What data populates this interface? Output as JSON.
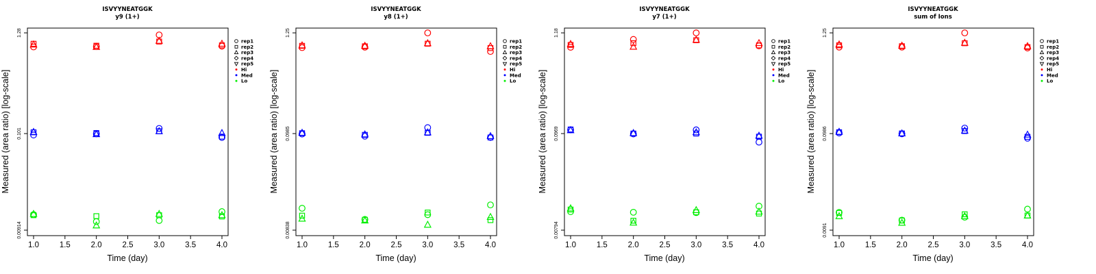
{
  "chart_data": [
    {
      "type": "scatter",
      "title": "ISVYYNEATGGK",
      "subtitle": "y9 (1+)",
      "xlabel": "Time (day)",
      "ylabel": "Measured (area ratio) [log-scale]",
      "xlim": [
        1,
        4
      ],
      "x_ticks": [
        "1.0",
        "1.5",
        "2.0",
        "2.5",
        "3.0",
        "3.5",
        "4.0"
      ],
      "y_tick_labels": [
        "1.28",
        "0.101",
        "0.00914"
      ],
      "ylim_log10": [
        -2.07,
        0.13
      ],
      "legend_entries": [
        "rep1",
        "rep2",
        "rep3",
        "rep4",
        "rep5",
        "Hi",
        "Med",
        "Lo"
      ],
      "legend_position": "right",
      "series": [
        {
          "name": "Hi",
          "color": "#ff0000",
          "points": [
            {
              "x": 1,
              "rep": "rep1",
              "y": 0.94
            },
            {
              "x": 1,
              "rep": "rep2",
              "y": 1.02
            },
            {
              "x": 1,
              "rep": "rep3",
              "y": 1.0
            },
            {
              "x": 2,
              "rep": "rep1",
              "y": 0.95
            },
            {
              "x": 2,
              "rep": "rep2",
              "y": 0.97
            },
            {
              "x": 2,
              "rep": "rep3",
              "y": 0.94
            },
            {
              "x": 3,
              "rep": "rep1",
              "y": 1.28
            },
            {
              "x": 3,
              "rep": "rep2",
              "y": 1.08
            },
            {
              "x": 3,
              "rep": "rep3",
              "y": 1.1
            },
            {
              "x": 4,
              "rep": "rep1",
              "y": 0.96
            },
            {
              "x": 4,
              "rep": "rep2",
              "y": 0.98
            },
            {
              "x": 4,
              "rep": "rep3",
              "y": 1.02
            }
          ]
        },
        {
          "name": "Med",
          "color": "#0000ff",
          "points": [
            {
              "x": 1,
              "rep": "rep1",
              "y": 0.098
            },
            {
              "x": 1,
              "rep": "rep2",
              "y": 0.105
            },
            {
              "x": 1,
              "rep": "rep3",
              "y": 0.106
            },
            {
              "x": 2,
              "rep": "rep1",
              "y": 0.101
            },
            {
              "x": 2,
              "rep": "rep2",
              "y": 0.103
            },
            {
              "x": 2,
              "rep": "rep3",
              "y": 0.1
            },
            {
              "x": 3,
              "rep": "rep1",
              "y": 0.116
            },
            {
              "x": 3,
              "rep": "rep2",
              "y": 0.108
            },
            {
              "x": 3,
              "rep": "rep3",
              "y": 0.108
            },
            {
              "x": 4,
              "rep": "rep1",
              "y": 0.092
            },
            {
              "x": 4,
              "rep": "rep2",
              "y": 0.094
            },
            {
              "x": 4,
              "rep": "rep3",
              "y": 0.103
            }
          ]
        },
        {
          "name": "Lo",
          "color": "#00ee00",
          "points": [
            {
              "x": 1,
              "rep": "rep1",
              "y": 0.0127
            },
            {
              "x": 1,
              "rep": "rep2",
              "y": 0.0125
            },
            {
              "x": 1,
              "rep": "rep3",
              "y": 0.0129
            },
            {
              "x": 2,
              "rep": "rep1",
              "y": 0.0106
            },
            {
              "x": 2,
              "rep": "rep2",
              "y": 0.0122
            },
            {
              "x": 2,
              "rep": "rep3",
              "y": 0.0096
            },
            {
              "x": 3,
              "rep": "rep1",
              "y": 0.0109
            },
            {
              "x": 3,
              "rep": "rep2",
              "y": 0.0125
            },
            {
              "x": 3,
              "rep": "rep3",
              "y": 0.0129
            },
            {
              "x": 4,
              "rep": "rep1",
              "y": 0.0137
            },
            {
              "x": 4,
              "rep": "rep2",
              "y": 0.0121
            },
            {
              "x": 4,
              "rep": "rep3",
              "y": 0.0125
            }
          ]
        }
      ]
    },
    {
      "type": "scatter",
      "title": "ISVYYNEATGGK",
      "subtitle": "y8 (1+)",
      "xlabel": "Time (day)",
      "ylabel": "Measured (area ratio) [log-scale]",
      "xlim": [
        1,
        4
      ],
      "x_ticks": [
        "1.0",
        "1.5",
        "2.0",
        "2.5",
        "3.0",
        "3.5",
        "4.0"
      ],
      "y_tick_labels": [
        "1.25",
        "0.0985",
        "0.00838"
      ],
      "ylim_log10": [
        -2.077,
        0.097
      ],
      "legend_entries": [
        "rep1",
        "rep2",
        "rep3",
        "rep4",
        "rep5",
        "Hi",
        "Med",
        "Lo"
      ],
      "legend_position": "right",
      "series": [
        {
          "name": "Hi",
          "color": "#ff0000",
          "points": [
            {
              "x": 1,
              "rep": "rep1",
              "y": 0.86
            },
            {
              "x": 1,
              "rep": "rep2",
              "y": 0.9
            },
            {
              "x": 1,
              "rep": "rep3",
              "y": 0.91
            },
            {
              "x": 2,
              "rep": "rep1",
              "y": 0.87
            },
            {
              "x": 2,
              "rep": "rep2",
              "y": 0.89
            },
            {
              "x": 2,
              "rep": "rep3",
              "y": 0.9
            },
            {
              "x": 3,
              "rep": "rep1",
              "y": 1.25
            },
            {
              "x": 3,
              "rep": "rep2",
              "y": 0.95
            },
            {
              "x": 3,
              "rep": "rep3",
              "y": 0.96
            },
            {
              "x": 4,
              "rep": "rep1",
              "y": 0.78
            },
            {
              "x": 4,
              "rep": "rep2",
              "y": 0.85
            },
            {
              "x": 4,
              "rep": "rep3",
              "y": 0.89
            }
          ]
        },
        {
          "name": "Med",
          "color": "#0000ff",
          "points": [
            {
              "x": 1,
              "rep": "rep1",
              "y": 0.096
            },
            {
              "x": 1,
              "rep": "rep2",
              "y": 0.098
            },
            {
              "x": 1,
              "rep": "rep3",
              "y": 0.099
            },
            {
              "x": 2,
              "rep": "rep1",
              "y": 0.091
            },
            {
              "x": 2,
              "rep": "rep2",
              "y": 0.094
            },
            {
              "x": 2,
              "rep": "rep3",
              "y": 0.095
            },
            {
              "x": 3,
              "rep": "rep1",
              "y": 0.113
            },
            {
              "x": 3,
              "rep": "rep2",
              "y": 0.099
            },
            {
              "x": 3,
              "rep": "rep3",
              "y": 0.1
            },
            {
              "x": 4,
              "rep": "rep1",
              "y": 0.088
            },
            {
              "x": 4,
              "rep": "rep2",
              "y": 0.088
            },
            {
              "x": 4,
              "rep": "rep3",
              "y": 0.091
            }
          ]
        },
        {
          "name": "Lo",
          "color": "#00ee00",
          "points": [
            {
              "x": 1,
              "rep": "rep1",
              "y": 0.0146
            },
            {
              "x": 1,
              "rep": "rep2",
              "y": 0.0121
            },
            {
              "x": 1,
              "rep": "rep3",
              "y": 0.0112
            },
            {
              "x": 2,
              "rep": "rep1",
              "y": 0.011
            },
            {
              "x": 2,
              "rep": "rep2",
              "y": 0.0109
            },
            {
              "x": 2,
              "rep": "rep3",
              "y": 0.0107
            },
            {
              "x": 3,
              "rep": "rep1",
              "y": 0.0124
            },
            {
              "x": 3,
              "rep": "rep2",
              "y": 0.0131
            },
            {
              "x": 3,
              "rep": "rep3",
              "y": 0.0096
            },
            {
              "x": 4,
              "rep": "rep1",
              "y": 0.0159
            },
            {
              "x": 4,
              "rep": "rep2",
              "y": 0.0108
            },
            {
              "x": 4,
              "rep": "rep3",
              "y": 0.0117
            }
          ]
        }
      ]
    },
    {
      "type": "scatter",
      "title": "ISVYYNEATGGK",
      "subtitle": "y7 (1+)",
      "xlabel": "Time (day)",
      "ylabel": "Measured (area ratio) [log-scale]",
      "xlim": [
        1,
        4
      ],
      "x_ticks": [
        "1.0",
        "1.5",
        "2.0",
        "2.5",
        "3.0",
        "3.5",
        "4.0"
      ],
      "y_tick_labels": [
        "1.18",
        "0.0969",
        "0.00794"
      ],
      "ylim_log10": [
        -2.1,
        0.072
      ],
      "legend_entries": [
        "rep1",
        "rep2",
        "rep3",
        "rep4",
        "rep5",
        "Hi",
        "Med",
        "Lo"
      ],
      "legend_position": "right",
      "series": [
        {
          "name": "Hi",
          "color": "#ff0000",
          "points": [
            {
              "x": 1,
              "rep": "rep1",
              "y": 0.82
            },
            {
              "x": 1,
              "rep": "rep2",
              "y": 0.87
            },
            {
              "x": 1,
              "rep": "rep3",
              "y": 0.89
            },
            {
              "x": 2,
              "rep": "rep1",
              "y": 1.0
            },
            {
              "x": 2,
              "rep": "rep2",
              "y": 0.91
            },
            {
              "x": 2,
              "rep": "rep3",
              "y": 0.83
            },
            {
              "x": 3,
              "rep": "rep1",
              "y": 1.18
            },
            {
              "x": 3,
              "rep": "rep2",
              "y": 0.98
            },
            {
              "x": 3,
              "rep": "rep3",
              "y": 0.99
            },
            {
              "x": 4,
              "rep": "rep1",
              "y": 0.85
            },
            {
              "x": 4,
              "rep": "rep2",
              "y": 0.86
            },
            {
              "x": 4,
              "rep": "rep3",
              "y": 0.91
            }
          ]
        },
        {
          "name": "Med",
          "color": "#0000ff",
          "points": [
            {
              "x": 1,
              "rep": "rep1",
              "y": 0.101
            },
            {
              "x": 1,
              "rep": "rep2",
              "y": 0.102
            },
            {
              "x": 1,
              "rep": "rep3",
              "y": 0.1
            },
            {
              "x": 2,
              "rep": "rep1",
              "y": 0.091
            },
            {
              "x": 2,
              "rep": "rep2",
              "y": 0.092
            },
            {
              "x": 2,
              "rep": "rep3",
              "y": 0.093
            },
            {
              "x": 3,
              "rep": "rep1",
              "y": 0.101
            },
            {
              "x": 3,
              "rep": "rep2",
              "y": 0.092
            },
            {
              "x": 3,
              "rep": "rep3",
              "y": 0.095
            },
            {
              "x": 4,
              "rep": "rep1",
              "y": 0.074
            },
            {
              "x": 4,
              "rep": "rep2",
              "y": 0.085
            },
            {
              "x": 4,
              "rep": "rep3",
              "y": 0.087
            }
          ]
        },
        {
          "name": "Lo",
          "color": "#00ee00",
          "points": [
            {
              "x": 1,
              "rep": "rep1",
              "y": 0.0127
            },
            {
              "x": 1,
              "rep": "rep2",
              "y": 0.0134
            },
            {
              "x": 1,
              "rep": "rep3",
              "y": 0.0138
            },
            {
              "x": 2,
              "rep": "rep1",
              "y": 0.0125
            },
            {
              "x": 2,
              "rep": "rep2",
              "y": 0.0101
            },
            {
              "x": 2,
              "rep": "rep3",
              "y": 0.0096
            },
            {
              "x": 3,
              "rep": "rep1",
              "y": 0.0124
            },
            {
              "x": 3,
              "rep": "rep2",
              "y": 0.0125
            },
            {
              "x": 3,
              "rep": "rep3",
              "y": 0.0132
            },
            {
              "x": 4,
              "rep": "rep1",
              "y": 0.0146
            },
            {
              "x": 4,
              "rep": "rep2",
              "y": 0.0121
            },
            {
              "x": 4,
              "rep": "rep3",
              "y": 0.0127
            }
          ]
        }
      ]
    },
    {
      "type": "scatter",
      "title": "ISVYYNEATGGK",
      "subtitle": "sum of Ions",
      "xlabel": "Time (day)",
      "ylabel": "Measured (area ratio) [log-scale]",
      "xlim": [
        1,
        4
      ],
      "x_ticks": [
        "1.0",
        "1.5",
        "2.0",
        "2.5",
        "3.0",
        "3.5",
        "4.0"
      ],
      "y_tick_labels": [
        "1.25",
        "0.0986",
        "0.0091"
      ],
      "ylim_log10": [
        -2.09,
        0.097
      ],
      "legend_entries": [
        "rep1",
        "rep2",
        "rep3",
        "rep4",
        "rep5",
        "Hi",
        "Med",
        "Lo"
      ],
      "legend_position": "right",
      "series": [
        {
          "name": "Hi",
          "color": "#ff0000",
          "points": [
            {
              "x": 1,
              "rep": "rep1",
              "y": 0.87
            },
            {
              "x": 1,
              "rep": "rep2",
              "y": 0.91
            },
            {
              "x": 1,
              "rep": "rep3",
              "y": 0.93
            },
            {
              "x": 2,
              "rep": "rep1",
              "y": 0.87
            },
            {
              "x": 2,
              "rep": "rep2",
              "y": 0.89
            },
            {
              "x": 2,
              "rep": "rep3",
              "y": 0.9
            },
            {
              "x": 3,
              "rep": "rep1",
              "y": 1.25
            },
            {
              "x": 3,
              "rep": "rep2",
              "y": 0.96
            },
            {
              "x": 3,
              "rep": "rep3",
              "y": 0.97
            },
            {
              "x": 4,
              "rep": "rep1",
              "y": 0.85
            },
            {
              "x": 4,
              "rep": "rep2",
              "y": 0.87
            },
            {
              "x": 4,
              "rep": "rep3",
              "y": 0.89
            }
          ]
        },
        {
          "name": "Med",
          "color": "#0000ff",
          "points": [
            {
              "x": 1,
              "rep": "rep1",
              "y": 0.097
            },
            {
              "x": 1,
              "rep": "rep2",
              "y": 0.099
            },
            {
              "x": 1,
              "rep": "rep3",
              "y": 0.1
            },
            {
              "x": 2,
              "rep": "rep1",
              "y": 0.095
            },
            {
              "x": 2,
              "rep": "rep2",
              "y": 0.096
            },
            {
              "x": 2,
              "rep": "rep3",
              "y": 0.096
            },
            {
              "x": 3,
              "rep": "rep1",
              "y": 0.11
            },
            {
              "x": 3,
              "rep": "rep2",
              "y": 0.102
            },
            {
              "x": 3,
              "rep": "rep3",
              "y": 0.103
            },
            {
              "x": 4,
              "rep": "rep1",
              "y": 0.085
            },
            {
              "x": 4,
              "rep": "rep2",
              "y": 0.088
            },
            {
              "x": 4,
              "rep": "rep3",
              "y": 0.093
            }
          ]
        },
        {
          "name": "Lo",
          "color": "#00ee00",
          "points": [
            {
              "x": 1,
              "rep": "rep1",
              "y": 0.0128
            },
            {
              "x": 1,
              "rep": "rep2",
              "y": 0.0126
            },
            {
              "x": 1,
              "rep": "rep3",
              "y": 0.0116
            },
            {
              "x": 2,
              "rep": "rep1",
              "y": 0.0105
            },
            {
              "x": 2,
              "rep": "rep2",
              "y": 0.0104
            },
            {
              "x": 2,
              "rep": "rep3",
              "y": 0.0098
            },
            {
              "x": 3,
              "rep": "rep1",
              "y": 0.0113
            },
            {
              "x": 3,
              "rep": "rep2",
              "y": 0.0122
            },
            {
              "x": 3,
              "rep": "rep3",
              "y": 0.0116
            },
            {
              "x": 4,
              "rep": "rep1",
              "y": 0.0139
            },
            {
              "x": 4,
              "rep": "rep2",
              "y": 0.0118
            },
            {
              "x": 4,
              "rep": "rep3",
              "y": 0.0118
            }
          ]
        }
      ]
    }
  ]
}
